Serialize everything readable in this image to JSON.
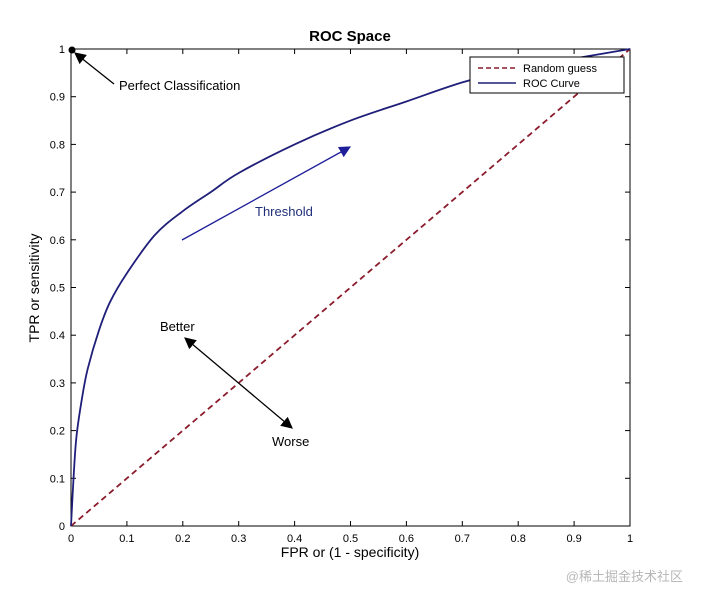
{
  "chart_data": {
    "type": "line",
    "title": "ROC Space",
    "xlabel": "FPR or (1 - specificity)",
    "ylabel": "TPR or sensitivity",
    "xlim": [
      0,
      1
    ],
    "ylim": [
      0,
      1
    ],
    "x_ticks": [
      "0",
      "0.1",
      "0.2",
      "0.3",
      "0.4",
      "0.5",
      "0.6",
      "0.7",
      "0.8",
      "0.9",
      "1"
    ],
    "y_ticks": [
      "0",
      "0.1",
      "0.2",
      "0.3",
      "0.4",
      "0.5",
      "0.6",
      "0.7",
      "0.8",
      "0.9",
      "1"
    ],
    "grid": false,
    "legend_position": "top-right",
    "series": [
      {
        "name": "Random guess",
        "style": "dashed",
        "color": "#8b1c2c",
        "x": [
          0,
          1
        ],
        "y": [
          0,
          1
        ]
      },
      {
        "name": "ROC Curve",
        "style": "solid",
        "color": "#1f1f7a",
        "x": [
          0,
          0.005,
          0.01,
          0.02,
          0.03,
          0.05,
          0.07,
          0.1,
          0.15,
          0.2,
          0.25,
          0.3,
          0.4,
          0.5,
          0.6,
          0.7,
          0.8,
          0.9,
          1.0
        ],
        "y": [
          0,
          0.11,
          0.19,
          0.27,
          0.33,
          0.41,
          0.47,
          0.53,
          0.61,
          0.66,
          0.7,
          0.74,
          0.8,
          0.85,
          0.89,
          0.93,
          0.96,
          0.98,
          1.0
        ]
      }
    ],
    "annotations": {
      "perfect": "Perfect Classification",
      "threshold": "Threshold",
      "better": "Better",
      "worse": "Worse"
    }
  },
  "watermark": "@稀土掘金技术社区",
  "colors": {
    "random": "#8b1c2c",
    "roc": "#1f1f7a",
    "threshold_arrow": "#1f1f9a",
    "threshold_text": "#1f2f7a"
  }
}
